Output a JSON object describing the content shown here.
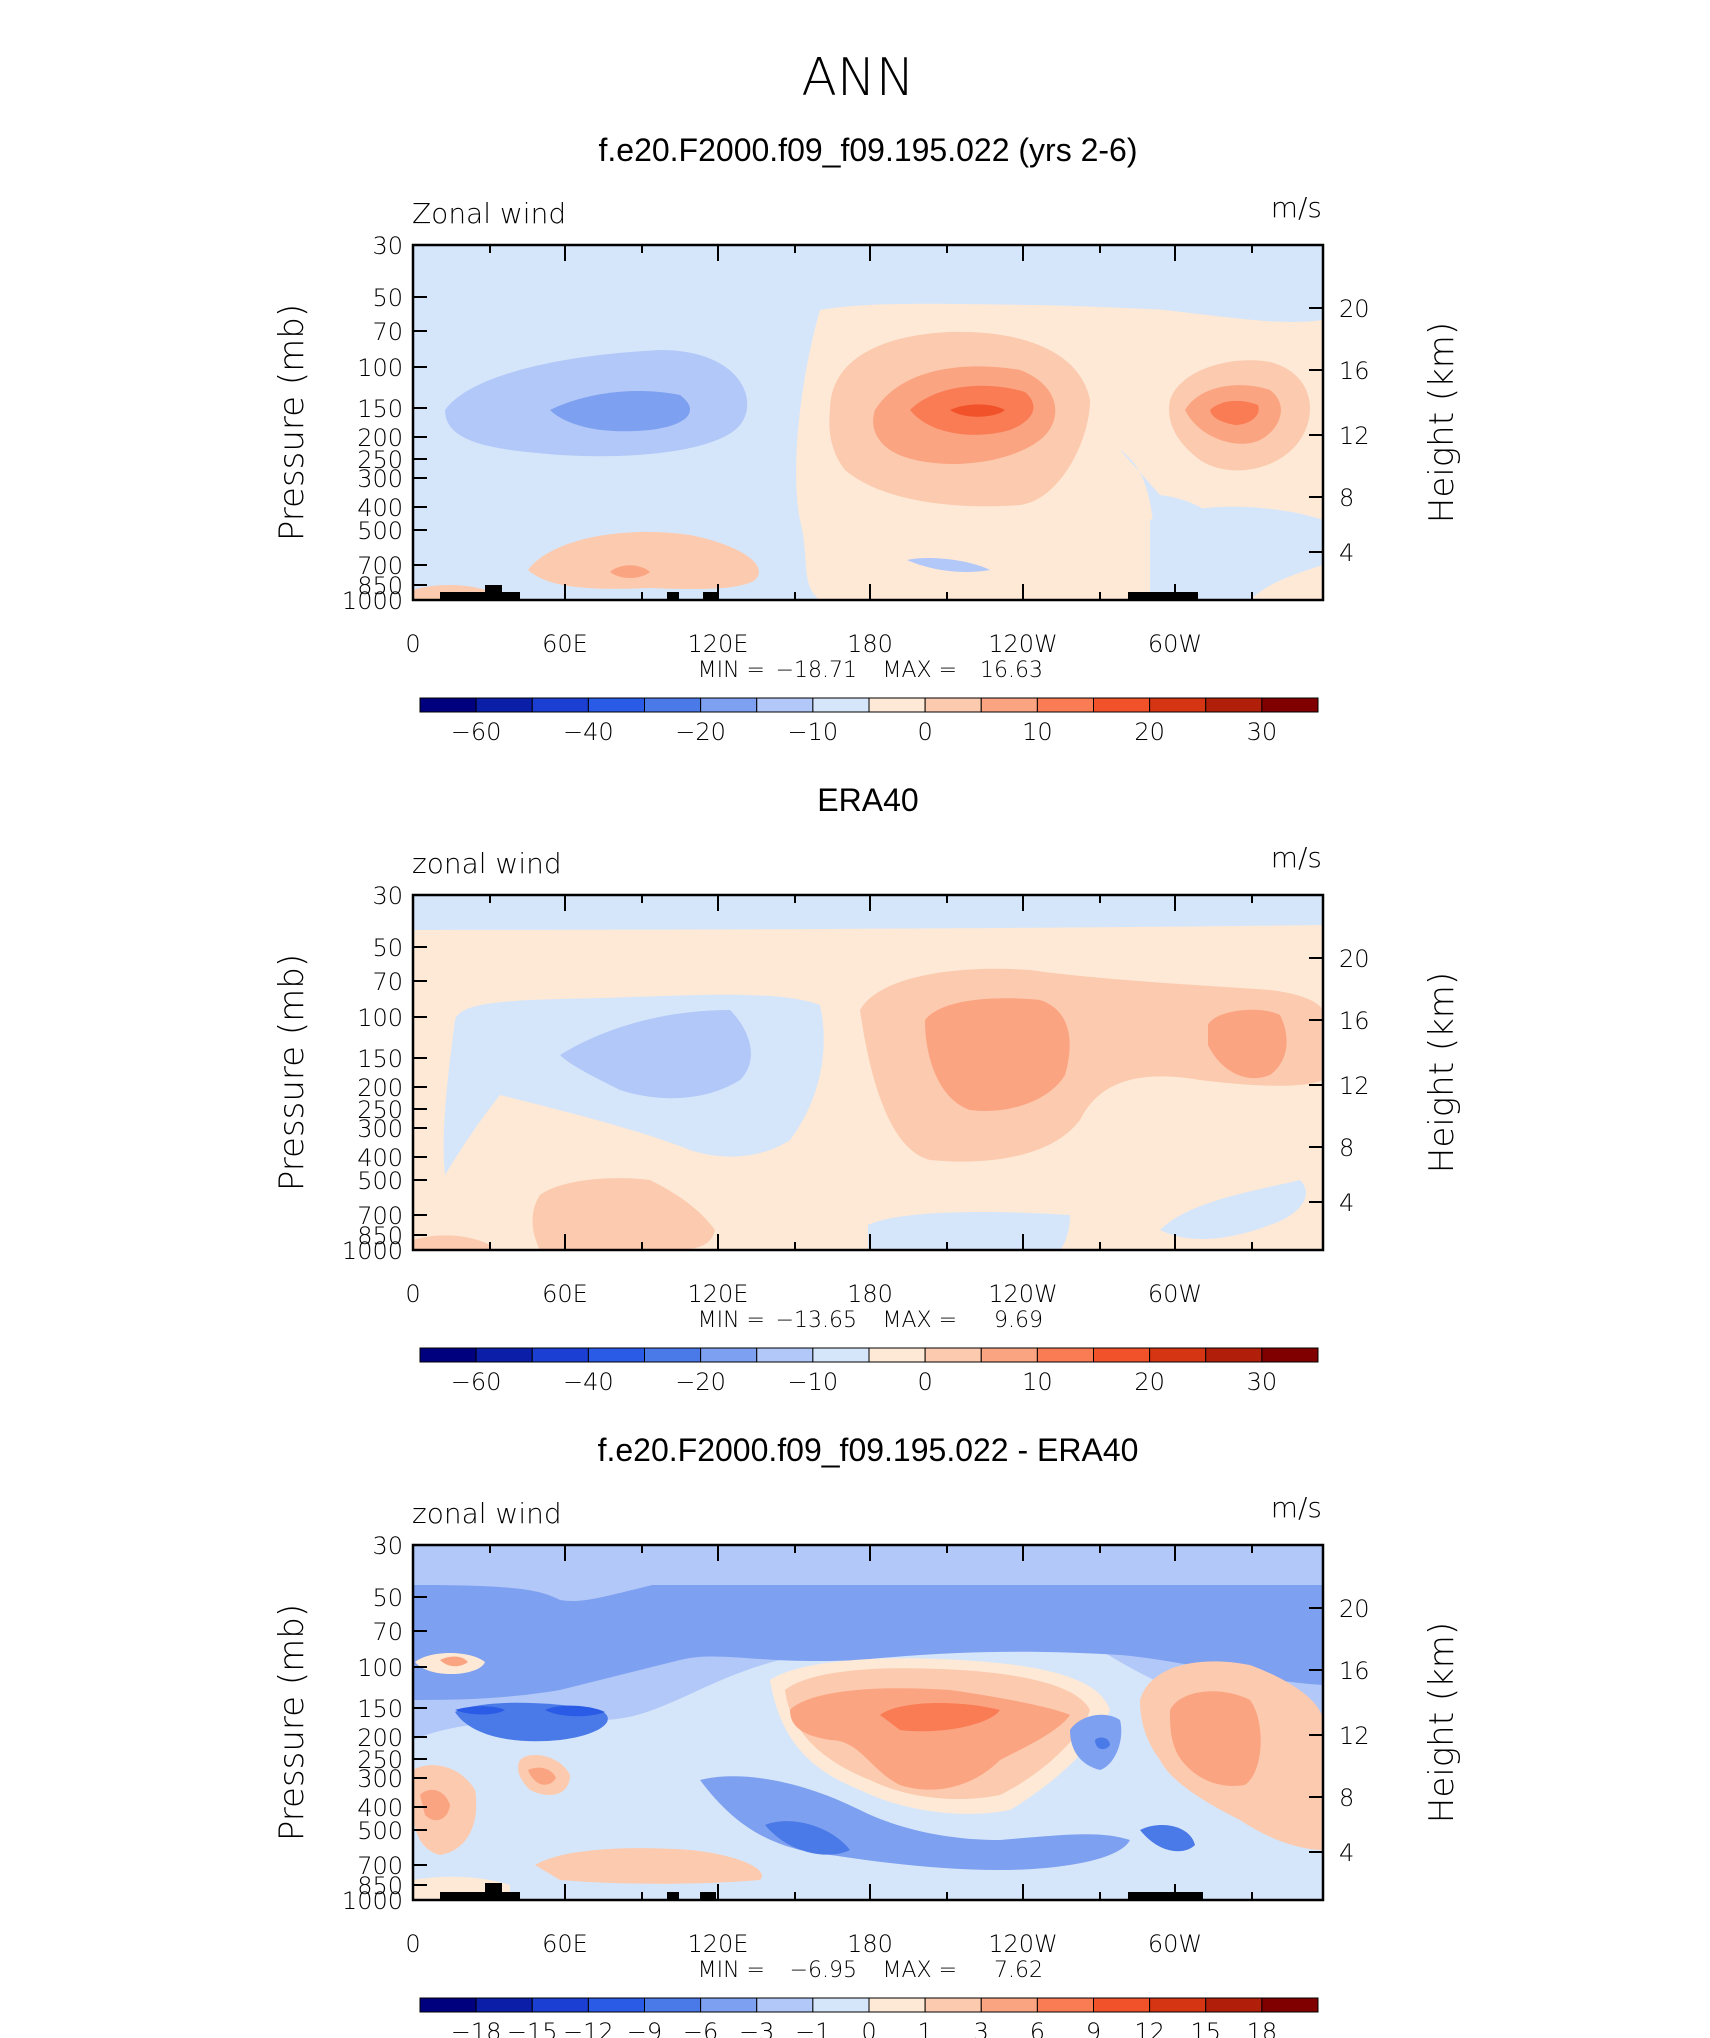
{
  "figure_title": "ANN",
  "colors": {
    "full_scale": [
      "#00007f",
      "#0a1ea8",
      "#1c3fd3",
      "#2a5be6",
      "#4a7ae8",
      "#7ea0f0",
      "#b2c8f8",
      "#d6e6fa",
      "#fde9d6",
      "#fccaae",
      "#fba482",
      "#f97c55",
      "#f2522a",
      "#d63514",
      "#b11f0a",
      "#800000"
    ],
    "diff_scale": [
      "#00007f",
      "#0a1ea8",
      "#1c3fd3",
      "#2a5be6",
      "#4a7ae8",
      "#7ea0f0",
      "#b2c8f8",
      "#d6e6fa",
      "#fde9d6",
      "#fccaae",
      "#fba482",
      "#f97c55",
      "#f2522a",
      "#d63514",
      "#b11f0a",
      "#800000"
    ],
    "topography": "#000000"
  },
  "chart_data": [
    {
      "type": "heatmap",
      "title": "f.e20.F2000.f09_f09.195.022 (yrs 2-6)",
      "variable": "Zonal wind",
      "units": "m/s",
      "ylabel": "Pressure (mb)",
      "y2label": "Height (km)",
      "yticks": [
        "30",
        "50",
        "70",
        "100",
        "150",
        "200",
        "250",
        "300",
        "400",
        "500",
        "700",
        "850",
        "1000"
      ],
      "y2ticks": [
        "20",
        "16",
        "12",
        "8",
        "4"
      ],
      "xticks": [
        "0",
        "60E",
        "120E",
        "180",
        "120W",
        "60W"
      ],
      "min_label": "MIN =",
      "min_value": "−18.71",
      "max_label": "MAX =",
      "max_value": "16.63",
      "colorbar_labels": [
        "−60",
        "−40",
        "−20",
        "−10",
        "0",
        "10",
        "20",
        "30"
      ],
      "colorbar_levels": [
        -70,
        -60,
        -50,
        -40,
        -30,
        -20,
        -15,
        -10,
        -5,
        0,
        5,
        10,
        15,
        20,
        25,
        30
      ],
      "data_range": [
        -18.71,
        16.63
      ]
    },
    {
      "type": "heatmap",
      "title": "ERA40",
      "variable": "zonal wind",
      "units": "m/s",
      "ylabel": "Pressure (mb)",
      "y2label": "Height (km)",
      "yticks": [
        "30",
        "50",
        "70",
        "100",
        "150",
        "200",
        "250",
        "300",
        "400",
        "500",
        "700",
        "850",
        "1000"
      ],
      "y2ticks": [
        "20",
        "16",
        "12",
        "8",
        "4"
      ],
      "xticks": [
        "0",
        "60E",
        "120E",
        "180",
        "120W",
        "60W"
      ],
      "min_label": "MIN =",
      "min_value": "−13.65",
      "max_label": "MAX =",
      "max_value": "9.69",
      "colorbar_labels": [
        "−60",
        "−40",
        "−20",
        "−10",
        "0",
        "10",
        "20",
        "30"
      ],
      "colorbar_levels": [
        -70,
        -60,
        -50,
        -40,
        -30,
        -20,
        -15,
        -10,
        -5,
        0,
        5,
        10,
        15,
        20,
        25,
        30
      ],
      "data_range": [
        -13.65,
        9.69
      ]
    },
    {
      "type": "heatmap",
      "title": "f.e20.F2000.f09_f09.195.022 - ERA40",
      "variable": "zonal wind",
      "units": "m/s",
      "ylabel": "Pressure (mb)",
      "y2label": "Height (km)",
      "yticks": [
        "30",
        "50",
        "70",
        "100",
        "150",
        "200",
        "250",
        "300",
        "400",
        "500",
        "700",
        "850",
        "1000"
      ],
      "y2ticks": [
        "20",
        "16",
        "12",
        "8",
        "4"
      ],
      "xticks": [
        "0",
        "60E",
        "120E",
        "180",
        "120W",
        "60W"
      ],
      "min_label": "MIN =",
      "min_value": "−6.95",
      "max_label": "MAX =",
      "max_value": "7.62",
      "colorbar_labels": [
        "−18",
        "−15",
        "−12",
        "−9",
        "−6",
        "−3",
        "−1",
        "0",
        "1",
        "3",
        "6",
        "9",
        "12",
        "15",
        "18"
      ],
      "data_range": [
        -6.95,
        7.62
      ]
    }
  ]
}
